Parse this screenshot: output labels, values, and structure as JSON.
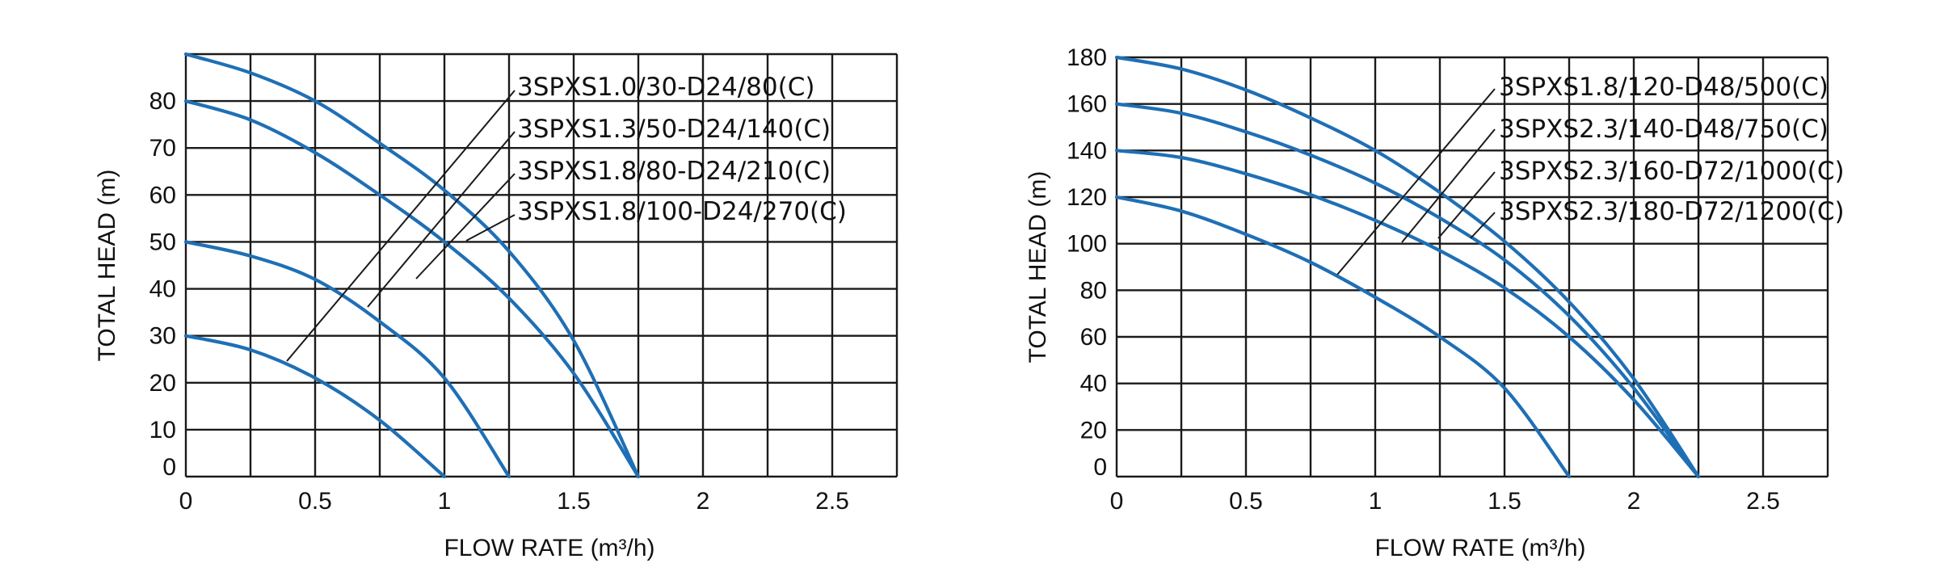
{
  "colors": {
    "curve": "#1f6fb5",
    "grid": "#1a1a1a",
    "text": "#111111"
  },
  "chart_data": [
    {
      "type": "line",
      "xlabel": "FLOW  RATE (m³/h)",
      "ylabel": "TOTAL HEAD (m)",
      "xlim": [
        0,
        2.75
      ],
      "ylim": [
        0,
        90
      ],
      "x_ticks": [
        "0",
        "0.5",
        "1",
        "1.5",
        "2",
        "2.5"
      ],
      "y_ticks": [
        "0",
        "10",
        "20",
        "30",
        "40",
        "50",
        "60",
        "70",
        "80"
      ],
      "grid": true,
      "series": [
        {
          "name": "3SPXS1.0/30-D24/80(C)",
          "x": [
            0,
            0.25,
            0.5,
            0.75,
            1.0
          ],
          "y": [
            30,
            27,
            21,
            12,
            0
          ]
        },
        {
          "name": "3SPXS1.3/50-D24/140(C)",
          "x": [
            0,
            0.25,
            0.5,
            0.75,
            1.0,
            1.25
          ],
          "y": [
            50,
            47,
            42,
            33,
            21,
            0
          ]
        },
        {
          "name": "3SPXS1.8/80-D24/210(C)",
          "x": [
            0,
            0.25,
            0.5,
            0.75,
            1.0,
            1.25,
            1.5,
            1.75
          ],
          "y": [
            80,
            76,
            69,
            60,
            50,
            38,
            22,
            0
          ]
        },
        {
          "name": "3SPXS1.8/100-D24/270(C)",
          "x": [
            0,
            0.25,
            0.5,
            0.75,
            1.0,
            1.25,
            1.5,
            1.75
          ],
          "y": [
            90,
            86,
            80,
            71,
            61,
            48,
            29,
            0
          ]
        }
      ]
    },
    {
      "type": "line",
      "xlabel": "FLOW  RATE (m³/h)",
      "ylabel": "TOTAL HEAD (m)",
      "xlim": [
        0,
        2.75
      ],
      "ylim": [
        0,
        180
      ],
      "x_ticks": [
        "0",
        "0.5",
        "1",
        "1.5",
        "2",
        "2.5"
      ],
      "y_ticks": [
        "0",
        "20",
        "40",
        "60",
        "80",
        "100",
        "120",
        "140",
        "160",
        "180"
      ],
      "grid": true,
      "series": [
        {
          "name": "3SPXS1.8/120-D48/500(C)",
          "x": [
            0,
            0.25,
            0.5,
            0.75,
            1.0,
            1.25,
            1.5,
            1.75
          ],
          "y": [
            120,
            114,
            104,
            92,
            77,
            60,
            38,
            0
          ]
        },
        {
          "name": "3SPXS2.3/140-D48/750(C)",
          "x": [
            0,
            0.25,
            0.5,
            0.75,
            1.0,
            1.25,
            1.5,
            1.75,
            2.0,
            2.25
          ],
          "y": [
            140,
            137,
            130,
            121,
            110,
            97,
            81,
            60,
            33,
            0
          ]
        },
        {
          "name": "3SPXS2.3/160-D72/1000(C)",
          "x": [
            0,
            0.25,
            0.5,
            0.75,
            1.0,
            1.25,
            1.5,
            1.75,
            2.0,
            2.25
          ],
          "y": [
            160,
            156,
            148,
            138,
            126,
            111,
            93,
            69,
            38,
            0
          ]
        },
        {
          "name": "3SPXS2.3/180-D72/1200(C)",
          "x": [
            0,
            0.25,
            0.5,
            0.75,
            1.0,
            1.25,
            1.5,
            1.75,
            2.0,
            2.25
          ],
          "y": [
            180,
            175,
            166,
            154,
            140,
            122,
            101,
            75,
            42,
            0
          ]
        }
      ]
    }
  ]
}
